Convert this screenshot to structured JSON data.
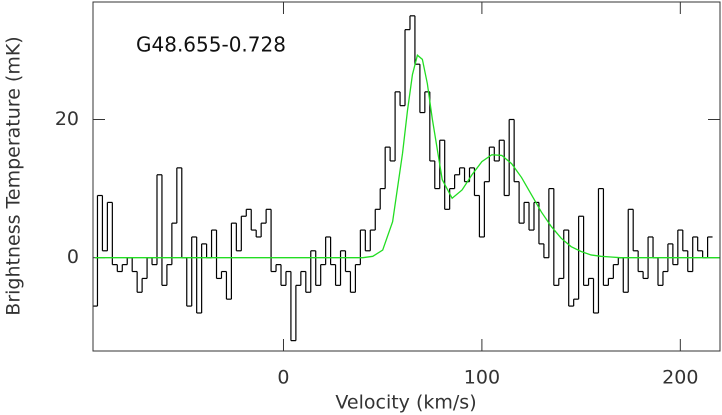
{
  "chart_data": {
    "type": "step",
    "annotation": "G48.655-0.728",
    "x_label": "Velocity (km/s)",
    "y_label": "Brightness Temperature (mK)",
    "xlim": [
      -96,
      220
    ],
    "ylim": [
      -13.5,
      37
    ],
    "xticks": [
      0,
      100,
      200
    ],
    "yticks": [
      0,
      20
    ],
    "series": [
      {
        "color": "#000000",
        "x_start": -95,
        "x_step": 2.5,
        "values": [
          -7,
          9,
          1,
          8,
          -1,
          -2,
          -1,
          0,
          -2,
          -5,
          -3,
          0,
          -1,
          12,
          -4,
          -1,
          5,
          13,
          0,
          -7,
          3,
          -8,
          2,
          0,
          4,
          -3,
          -2,
          -6,
          5,
          1,
          6,
          7,
          4,
          3,
          5,
          7,
          -2,
          -1,
          -4,
          -2,
          -12,
          -4,
          -2,
          -5,
          1,
          -4,
          -1,
          3,
          -1,
          -4,
          1,
          -2,
          -5,
          -1,
          4,
          1,
          4,
          7,
          10,
          16,
          14,
          24,
          22,
          33,
          35,
          28,
          21,
          24,
          14,
          10,
          17,
          7,
          10,
          12,
          13,
          11,
          13,
          9,
          3,
          11,
          16,
          14,
          17,
          9,
          20,
          11,
          5,
          8,
          4,
          8,
          2,
          0,
          10,
          -4,
          -3,
          4,
          -7,
          -6,
          6,
          -4,
          -3,
          -8,
          10,
          -4,
          -3,
          -1,
          0,
          -5,
          7,
          1,
          -2,
          -3,
          3,
          0,
          -4,
          -2,
          2,
          -1,
          4,
          1,
          -2,
          3,
          1,
          0,
          3
        ]
      },
      {
        "color": "#22dd22",
        "x": [
          -95,
          30,
          35,
          40,
          45,
          50,
          55,
          60,
          62.5,
          65,
          67.5,
          70,
          72.5,
          75,
          80,
          85,
          90,
          95,
          100,
          105,
          110,
          115,
          120,
          125,
          130,
          135,
          140,
          145,
          150,
          155,
          160,
          165,
          170,
          220
        ],
        "values": [
          0,
          0,
          0,
          0,
          0.2,
          1.1,
          5.2,
          15.1,
          21.3,
          26.5,
          29.3,
          28.7,
          25.2,
          20.1,
          11.3,
          8.6,
          9.8,
          12.0,
          13.9,
          14.9,
          14.8,
          13.6,
          11.6,
          9.1,
          6.6,
          4.5,
          2.8,
          1.6,
          0.9,
          0.4,
          0.2,
          0.1,
          0,
          0
        ]
      }
    ]
  }
}
